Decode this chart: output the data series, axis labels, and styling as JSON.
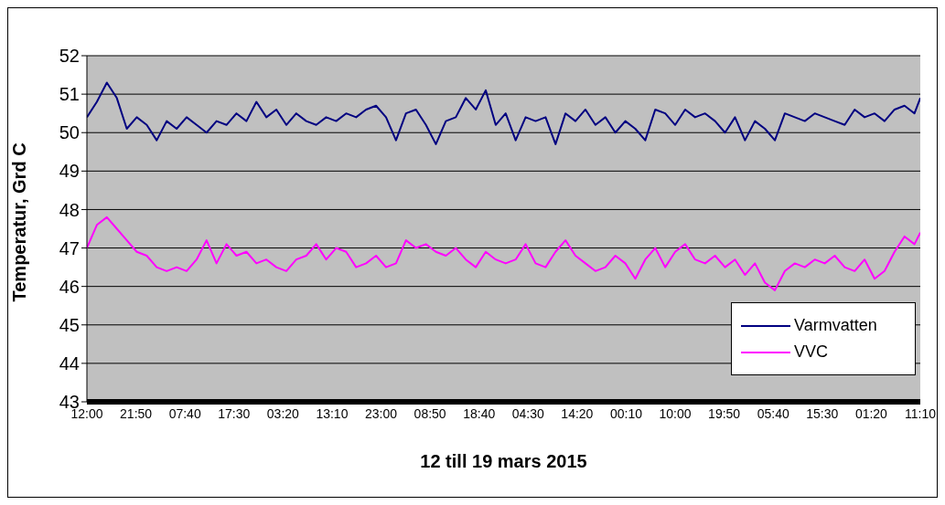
{
  "chart_data": {
    "type": "line",
    "xlabel": "12 till 19 mars 2015",
    "ylabel": "Temperatur, Grd C",
    "xlim": [
      "2015-03-12T12:00",
      "2015-03-19T11:10"
    ],
    "xticks": [
      {
        "value": "2015-03-12T12:00",
        "label": "12:00"
      },
      {
        "value": "2015-03-12T21:50",
        "label": "21:50"
      },
      {
        "value": "2015-03-13T07:40",
        "label": "07:40"
      },
      {
        "value": "2015-03-13T17:30",
        "label": "17:30"
      },
      {
        "value": "2015-03-14T03:20",
        "label": "03:20"
      },
      {
        "value": "2015-03-14T13:10",
        "label": "13:10"
      },
      {
        "value": "2015-03-14T23:00",
        "label": "23:00"
      },
      {
        "value": "2015-03-15T08:50",
        "label": "08:50"
      },
      {
        "value": "2015-03-15T18:40",
        "label": "18:40"
      },
      {
        "value": "2015-03-16T04:30",
        "label": "04:30"
      },
      {
        "value": "2015-03-16T14:20",
        "label": "14:20"
      },
      {
        "value": "2015-03-17T00:10",
        "label": "00:10"
      },
      {
        "value": "2015-03-17T10:00",
        "label": "10:00"
      },
      {
        "value": "2015-03-17T19:50",
        "label": "19:50"
      },
      {
        "value": "2015-03-18T05:40",
        "label": "05:40"
      },
      {
        "value": "2015-03-18T15:30",
        "label": "15:30"
      },
      {
        "value": "2015-03-19T01:20",
        "label": "01:20"
      },
      {
        "value": "2015-03-19T11:10",
        "label": "11:10"
      }
    ],
    "x": [
      "2015-03-12T12:00",
      "2015-03-12T14:00",
      "2015-03-12T16:00",
      "2015-03-12T18:00",
      "2015-03-12T20:00",
      "2015-03-12T22:00",
      "2015-03-13T00:00",
      "2015-03-13T02:00",
      "2015-03-13T04:00",
      "2015-03-13T06:00",
      "2015-03-13T08:00",
      "2015-03-13T10:00",
      "2015-03-13T12:00",
      "2015-03-13T14:00",
      "2015-03-13T16:00",
      "2015-03-13T18:00",
      "2015-03-13T20:00",
      "2015-03-13T22:00",
      "2015-03-14T00:00",
      "2015-03-14T02:00",
      "2015-03-14T04:00",
      "2015-03-14T06:00",
      "2015-03-14T08:00",
      "2015-03-14T10:00",
      "2015-03-14T12:00",
      "2015-03-14T14:00",
      "2015-03-14T16:00",
      "2015-03-14T18:00",
      "2015-03-14T20:00",
      "2015-03-14T22:00",
      "2015-03-15T00:00",
      "2015-03-15T02:00",
      "2015-03-15T04:00",
      "2015-03-15T06:00",
      "2015-03-15T08:00",
      "2015-03-15T10:00",
      "2015-03-15T12:00",
      "2015-03-15T14:00",
      "2015-03-15T16:00",
      "2015-03-15T18:00",
      "2015-03-15T20:00",
      "2015-03-15T22:00",
      "2015-03-16T00:00",
      "2015-03-16T02:00",
      "2015-03-16T04:00",
      "2015-03-16T06:00",
      "2015-03-16T08:00",
      "2015-03-16T10:00",
      "2015-03-16T12:00",
      "2015-03-16T14:00",
      "2015-03-16T16:00",
      "2015-03-16T18:00",
      "2015-03-16T20:00",
      "2015-03-16T22:00",
      "2015-03-17T00:00",
      "2015-03-17T02:00",
      "2015-03-17T04:00",
      "2015-03-17T06:00",
      "2015-03-17T08:00",
      "2015-03-17T10:00",
      "2015-03-17T12:00",
      "2015-03-17T14:00",
      "2015-03-17T16:00",
      "2015-03-17T18:00",
      "2015-03-17T20:00",
      "2015-03-17T22:00",
      "2015-03-18T00:00",
      "2015-03-18T02:00",
      "2015-03-18T04:00",
      "2015-03-18T06:00",
      "2015-03-18T08:00",
      "2015-03-18T10:00",
      "2015-03-18T12:00",
      "2015-03-18T14:00",
      "2015-03-18T16:00",
      "2015-03-18T18:00",
      "2015-03-18T20:00",
      "2015-03-18T22:00",
      "2015-03-19T00:00",
      "2015-03-19T02:00",
      "2015-03-19T04:00",
      "2015-03-19T06:00",
      "2015-03-19T08:00",
      "2015-03-19T10:00",
      "2015-03-19T11:10"
    ],
    "ylim": [
      43,
      52
    ],
    "yticks": [
      43,
      44,
      45,
      46,
      47,
      48,
      49,
      50,
      51,
      52
    ],
    "grid": "y",
    "legend": "bottom right",
    "marker": "none",
    "line_style": "solid",
    "series": [
      {
        "name": "Varmvatten",
        "color": "#000080",
        "values": [
          50.4,
          50.8,
          51.3,
          50.9,
          50.1,
          50.4,
          50.2,
          49.8,
          50.3,
          50.1,
          50.4,
          50.2,
          50.0,
          50.3,
          50.2,
          50.5,
          50.3,
          50.8,
          50.4,
          50.6,
          50.2,
          50.5,
          50.3,
          50.2,
          50.4,
          50.3,
          50.5,
          50.4,
          50.6,
          50.7,
          50.4,
          49.8,
          50.5,
          50.6,
          50.2,
          49.7,
          50.3,
          50.4,
          50.9,
          50.6,
          51.1,
          50.2,
          50.5,
          49.8,
          50.4,
          50.3,
          50.4,
          49.7,
          50.5,
          50.3,
          50.6,
          50.2,
          50.4,
          50.0,
          50.3,
          50.1,
          49.8,
          50.6,
          50.5,
          50.2,
          50.6,
          50.4,
          50.5,
          50.3,
          50.0,
          50.4,
          49.8,
          50.3,
          50.1,
          49.8,
          50.5,
          50.4,
          50.3,
          50.5,
          50.4,
          50.3,
          50.2,
          50.6,
          50.4,
          50.5,
          50.3,
          50.6,
          50.7,
          50.5,
          50.9
        ]
      },
      {
        "name": "VVC",
        "color": "#ff00ff",
        "values": [
          47.0,
          47.6,
          47.8,
          47.5,
          47.2,
          46.9,
          46.8,
          46.5,
          46.4,
          46.5,
          46.4,
          46.7,
          47.2,
          46.6,
          47.1,
          46.8,
          46.9,
          46.6,
          46.7,
          46.5,
          46.4,
          46.7,
          46.8,
          47.1,
          46.7,
          47.0,
          46.9,
          46.5,
          46.6,
          46.8,
          46.5,
          46.6,
          47.2,
          47.0,
          47.1,
          46.9,
          46.8,
          47.0,
          46.7,
          46.5,
          46.9,
          46.7,
          46.6,
          46.7,
          47.1,
          46.6,
          46.5,
          46.9,
          47.2,
          46.8,
          46.6,
          46.4,
          46.5,
          46.8,
          46.6,
          46.2,
          46.7,
          47.0,
          46.5,
          46.9,
          47.1,
          46.7,
          46.6,
          46.8,
          46.5,
          46.7,
          46.3,
          46.6,
          46.1,
          45.9,
          46.4,
          46.6,
          46.5,
          46.7,
          46.6,
          46.8,
          46.5,
          46.4,
          46.7,
          46.2,
          46.4,
          46.9,
          47.3,
          47.1,
          47.4
        ]
      }
    ]
  }
}
